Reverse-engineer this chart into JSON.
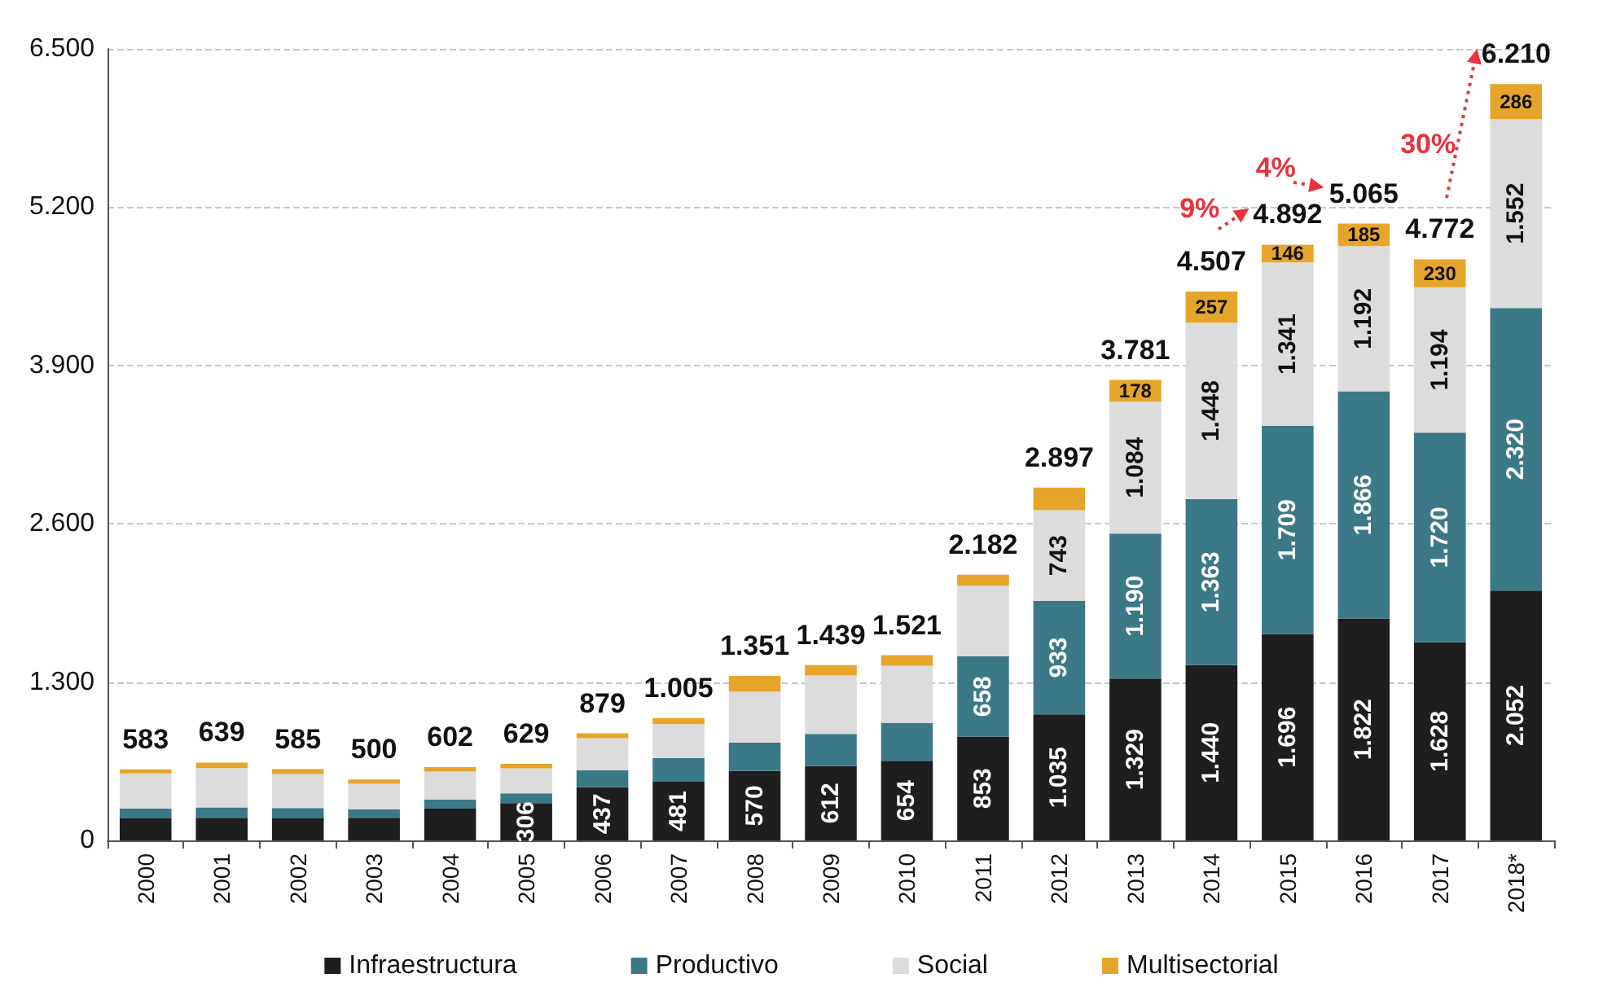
{
  "chart_data": {
    "type": "bar",
    "stacked": true,
    "categories": [
      "2000",
      "2001",
      "2002",
      "2003",
      "2004",
      "2005",
      "2006",
      "2007",
      "2008",
      "2009",
      "2010",
      "2011",
      "2012",
      "2013",
      "2014",
      "2015",
      "2016",
      "2017",
      "2018*"
    ],
    "series": [
      {
        "name": "Infraestructura",
        "color": "#1e1e1e",
        "values": [
          180,
          185,
          180,
          185,
          260,
          306,
          437,
          481,
          570,
          612,
          654,
          853,
          1035,
          1329,
          1440,
          1696,
          1822,
          1628,
          2052
        ],
        "value_labels": [
          null,
          null,
          null,
          null,
          null,
          "306",
          "437",
          "481",
          "570",
          "612",
          "654",
          "853",
          "1.035",
          "1.329",
          "1.440",
          "1.696",
          "1.822",
          "1.628",
          "2.052"
        ]
      },
      {
        "name": "Productivo",
        "color": "#3b7888",
        "values": [
          80,
          85,
          85,
          70,
          75,
          80,
          140,
          194,
          232,
          262,
          309,
          658,
          933,
          1190,
          1363,
          1709,
          1866,
          1720,
          2320
        ],
        "value_labels": [
          null,
          null,
          null,
          null,
          null,
          null,
          null,
          null,
          null,
          null,
          null,
          "658",
          "933",
          "1.190",
          "1.363",
          "1.709",
          "1.866",
          "1.720",
          "2.320"
        ]
      },
      {
        "name": "Social",
        "color": "#dcdcdc",
        "values": [
          290,
          324,
          280,
          210,
          230,
          205,
          262,
          280,
          420,
          480,
          472,
          581,
          743,
          1084,
          1448,
          1341,
          1192,
          1194,
          1552
        ],
        "value_labels": [
          null,
          null,
          null,
          null,
          null,
          null,
          null,
          null,
          null,
          null,
          null,
          null,
          "743",
          "1.084",
          "1.448",
          "1.341",
          "1.192",
          "1.194",
          "1.552"
        ]
      },
      {
        "name": "Multisectorial",
        "color": "#e6a52a",
        "values": [
          33,
          45,
          40,
          35,
          37,
          38,
          40,
          50,
          129,
          85,
          86,
          90,
          186,
          178,
          257,
          146,
          185,
          230,
          286
        ],
        "value_labels": [
          null,
          null,
          null,
          null,
          null,
          null,
          null,
          null,
          null,
          null,
          null,
          null,
          null,
          "178",
          "257",
          "146",
          "185",
          "230",
          "286"
        ]
      }
    ],
    "totals": [
      "583",
      "639",
      "585",
      "500",
      "602",
      "629",
      "879",
      "1.005",
      "1.351",
      "1.439",
      "1.521",
      "2.182",
      "2.897",
      "3.781",
      "4.507",
      "4.892",
      "5.065",
      "4.772",
      "6.210"
    ],
    "annotations": [
      {
        "text": "9%",
        "x": "2015",
        "y": 4892
      },
      {
        "text": "4%",
        "x": "2016",
        "y": 5065
      },
      {
        "text": "30%",
        "x": "2018*",
        "y": 6210
      }
    ],
    "ylim": [
      0,
      6500
    ],
    "yticks": [
      0,
      {
        "value": 1300,
        "label": "1.300"
      },
      {
        "value": 2600,
        "label": "2.600"
      },
      {
        "value": 3900,
        "label": "3.900"
      },
      {
        "value": 5200,
        "label": "5.200"
      },
      {
        "value": 6500,
        "label": "6.500"
      }
    ],
    "grid": "y",
    "legend": "bottom"
  }
}
